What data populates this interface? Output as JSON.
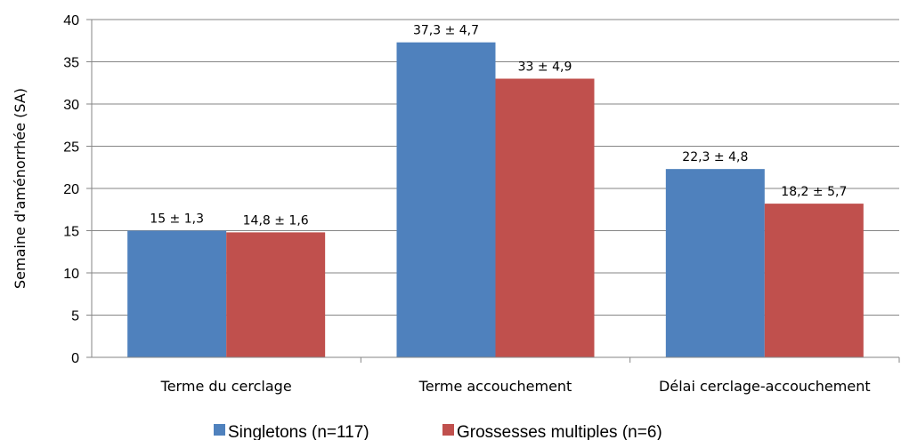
{
  "chart_data": {
    "type": "bar",
    "categories": [
      "Terme du cerclage",
      "Terme accouchement",
      "Délai cerclage-accouchement"
    ],
    "series": [
      {
        "name": "Singletons (n=117)",
        "color": "#4F81BD",
        "values": [
          15,
          37.3,
          22.3
        ],
        "labels": [
          "15 ± 1,3",
          "37,3 ± 4,7",
          "22,3 ± 4,8"
        ]
      },
      {
        "name": "Grossesses multiples (n=6)",
        "color": "#C0504D",
        "values": [
          14.8,
          33,
          18.2
        ],
        "labels": [
          "14,8 ± 1,6",
          "33 ± 4,9",
          "18,2 ± 5,7"
        ]
      }
    ],
    "ylabel": "Semaine d'aménorrhée (SA)",
    "xlabel": "",
    "ylim": [
      0,
      40
    ],
    "yticks": [
      0,
      5,
      10,
      15,
      20,
      25,
      30,
      35,
      40
    ],
    "grid": true,
    "legend": "bottom"
  }
}
